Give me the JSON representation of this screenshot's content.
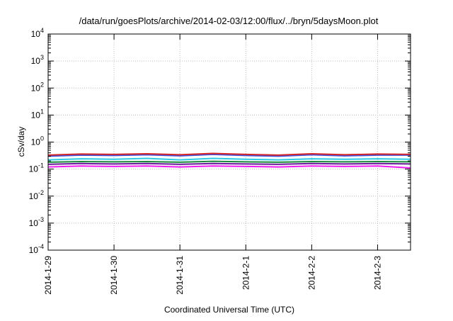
{
  "chart_data": {
    "type": "line",
    "title": "/data/run/goesPlots/archive/2014-02-03/12:00/flux/../bryn/5daysMoon.plot",
    "xlabel": "Coordinated Universal Time (UTC)",
    "ylabel": "cSv/day",
    "yscale": "log",
    "ylim": [
      0.0001,
      10000
    ],
    "xlim": [
      "2014-01-29T00:00",
      "2014-02-03T12:00"
    ],
    "y_ticks": [
      {
        "value": 0.0001,
        "base": "10",
        "exp": "-4"
      },
      {
        "value": 0.001,
        "base": "10",
        "exp": "-3"
      },
      {
        "value": 0.01,
        "base": "10",
        "exp": "-2"
      },
      {
        "value": 0.1,
        "base": "10",
        "exp": "-1"
      },
      {
        "value": 1,
        "base": "10",
        "exp": "0"
      },
      {
        "value": 10,
        "base": "10",
        "exp": "1"
      },
      {
        "value": 100,
        "base": "10",
        "exp": "2"
      },
      {
        "value": 1000,
        "base": "10",
        "exp": "3"
      },
      {
        "value": 10000,
        "base": "10",
        "exp": "4"
      }
    ],
    "x_ticks": [
      {
        "value": "2014-01-29T00:00",
        "label": "2014-1-29"
      },
      {
        "value": "2014-01-30T00:00",
        "label": "2014-1-30"
      },
      {
        "value": "2014-01-31T00:00",
        "label": "2014-1-31"
      },
      {
        "value": "2014-02-01T00:00",
        "label": "2014-2-1"
      },
      {
        "value": "2014-02-02T00:00",
        "label": "2014-2-2"
      },
      {
        "value": "2014-02-03T00:00",
        "label": "2014-2-3"
      }
    ],
    "grid": true,
    "legend": "none",
    "x": [
      "2014-01-29T00:00",
      "2014-01-29T12:00",
      "2014-01-30T00:00",
      "2014-01-30T12:00",
      "2014-01-31T00:00",
      "2014-01-31T12:00",
      "2014-02-01T00:00",
      "2014-02-01T12:00",
      "2014-02-02T00:00",
      "2014-02-02T12:00",
      "2014-02-03T00:00",
      "2014-02-03T12:00"
    ],
    "series": [
      {
        "color": "#d62728",
        "values": [
          0.33,
          0.36,
          0.35,
          0.37,
          0.34,
          0.38,
          0.35,
          0.33,
          0.37,
          0.34,
          0.36,
          0.35
        ]
      },
      {
        "color": "#3b4fe0",
        "values": [
          0.3,
          0.33,
          0.32,
          0.34,
          0.31,
          0.35,
          0.32,
          0.3,
          0.34,
          0.31,
          0.33,
          0.33
        ]
      },
      {
        "color": "#2ecbe6",
        "values": [
          0.22,
          0.24,
          0.23,
          0.25,
          0.22,
          0.25,
          0.23,
          0.22,
          0.24,
          0.23,
          0.24,
          0.23
        ]
      },
      {
        "color": "#1a8a3a",
        "values": [
          0.18,
          0.19,
          0.185,
          0.19,
          0.18,
          0.195,
          0.185,
          0.18,
          0.19,
          0.185,
          0.19,
          0.185
        ]
      },
      {
        "color": "#6a1b9a",
        "values": [
          0.15,
          0.16,
          0.155,
          0.16,
          0.15,
          0.16,
          0.155,
          0.15,
          0.16,
          0.155,
          0.16,
          0.155
        ]
      },
      {
        "color": "#f01bf0",
        "values": [
          0.12,
          0.13,
          0.125,
          0.13,
          0.12,
          0.13,
          0.125,
          0.12,
          0.13,
          0.125,
          0.13,
          0.11
        ]
      }
    ]
  }
}
